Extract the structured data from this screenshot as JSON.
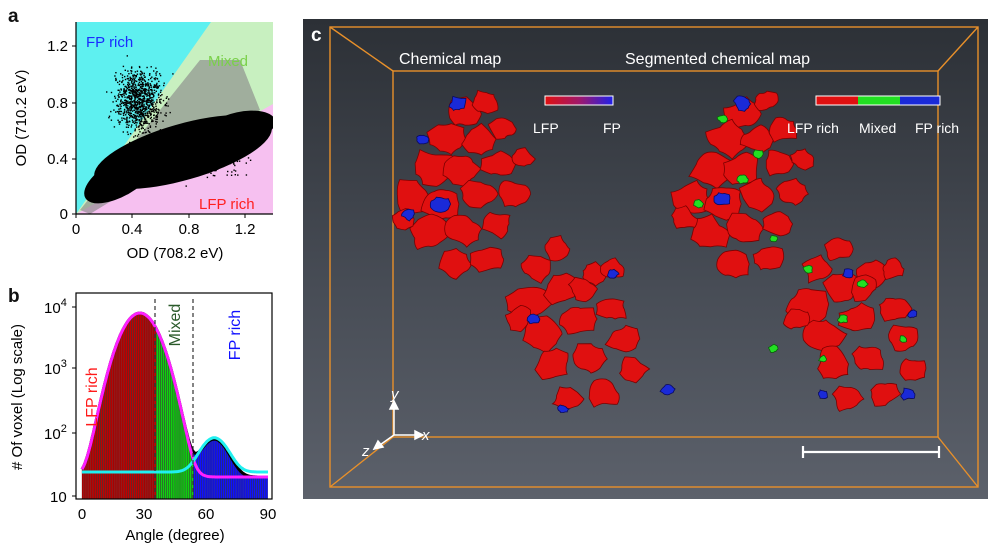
{
  "panels": {
    "a": "a",
    "b": "b",
    "c": "c"
  },
  "panel_a": {
    "ylabel": "OD (710.2 eV)",
    "xlabel": "OD (708.2 eV)",
    "x_ticks": [
      "0",
      "0.4",
      "0.8",
      "1.2"
    ],
    "y_ticks": [
      "0",
      "0.4",
      "0.8",
      "1.2"
    ],
    "region_labels": {
      "fp": "FP rich",
      "mixed": "Mixed",
      "lfp": "LFP rich"
    },
    "colors": {
      "fp_region": "#5ef0f0",
      "mixed_region": "#c8f0c0",
      "lfp_region": "#f6c0f0",
      "fp_text": "#1a2cff",
      "mixed_text": "#7ad04a",
      "lfp_text": "#ff2020"
    }
  },
  "panel_b": {
    "ylabel": "# Of voxel (Log scale)",
    "xlabel": "Angle (degree)",
    "x_ticks": [
      "0",
      "30",
      "60",
      "90"
    ],
    "y_ticks": [
      {
        "base": "10",
        "exp": "4"
      },
      {
        "base": "10",
        "exp": "3"
      },
      {
        "base": "10",
        "exp": "2"
      },
      {
        "base": "10",
        "exp": ""
      }
    ],
    "region_labels": {
      "lfp": "LFP rich",
      "mixed": "Mixed",
      "fp": "FP rich"
    },
    "colors": {
      "lfp": "#c00000",
      "mixed": "#10d010",
      "fp": "#1010ff",
      "fit_lfp": "#ff20ff",
      "fit_fp": "#20f0f0",
      "envelope": "#000000"
    }
  },
  "chart_data": [
    {
      "type": "scatter",
      "xlabel": "OD (708.2 eV)",
      "ylabel": "OD (710.2 eV)",
      "xlim": [
        0,
        1.4
      ],
      "ylim": [
        0,
        1.35
      ],
      "region_boundaries_slope": [
        1.55,
        0.55
      ],
      "regions": [
        "FP rich",
        "Mixed",
        "LFP rich"
      ],
      "grid": false
    },
    {
      "type": "bar",
      "xlabel": "Angle (degree)",
      "ylabel": "# Of voxel (Log scale)",
      "log_y": true,
      "xlim": [
        0,
        90
      ],
      "ylim": [
        10,
        10000
      ],
      "thresholds": [
        36,
        54
      ],
      "x": [
        2,
        6,
        10,
        14,
        18,
        22,
        26,
        30,
        34,
        38,
        42,
        46,
        50,
        54,
        58,
        62,
        66,
        70,
        74,
        78,
        82,
        86,
        89
      ],
      "values": [
        25,
        60,
        180,
        600,
        1800,
        4500,
        8000,
        8000,
        5000,
        2500,
        1400,
        700,
        330,
        190,
        140,
        125,
        100,
        70,
        45,
        30,
        22,
        18,
        40
      ],
      "series": [
        {
          "name": "LFP rich",
          "center": 28,
          "peak": 8000
        },
        {
          "name": "FP rich",
          "center": 64,
          "peak": 60
        }
      ]
    }
  ],
  "panel_c": {
    "title_left": "Chemical map",
    "title_right": "Segmented chemical map",
    "bar_left_labels": {
      "start": "LFP",
      "end": "FP"
    },
    "bar_right_labels": {
      "start": "LFP rich",
      "mid": "Mixed",
      "end": "FP rich"
    },
    "axes": {
      "x": "x",
      "y": "y",
      "z": "z"
    },
    "colors": {
      "particle": "#e01010",
      "fp": "#1a2ad8",
      "mixed": "#22e022",
      "box": "#e8902a"
    }
  }
}
